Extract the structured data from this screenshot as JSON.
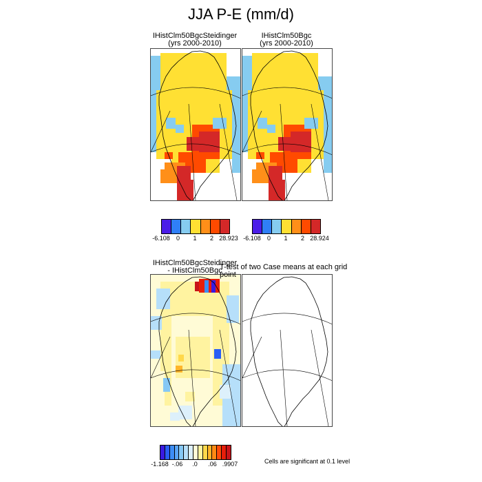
{
  "figure": {
    "title": "JJA P-E (mm/d)",
    "panels": [
      {
        "title_line1": "IHistClm50BgcSteidinger",
        "title_line2": "(yrs 2000-2010)"
      },
      {
        "title_line1": "IHistClm50Bgc",
        "title_line2": "(yrs 2000-2010)"
      },
      {
        "title_line1": "IHistClm50BgcSteidinger",
        "title_line2": "- IHistClm50Bgc"
      },
      {
        "title_line1": "T-test of two Case means at each grid point",
        "title_line2": ""
      }
    ],
    "colorbars": [
      {
        "colors": [
          "#4b1de8",
          "#2f7ff7",
          "#86ccf0",
          "#ffe033",
          "#ff8f19",
          "#ff4a00",
          "#d42828"
        ],
        "labels": [
          "-6.108",
          "0",
          "1",
          "2",
          "28.923"
        ]
      },
      {
        "colors": [
          "#4b1de8",
          "#2f7ff7",
          "#86ccf0",
          "#ffe033",
          "#ff8f19",
          "#ff4a00",
          "#d42828"
        ],
        "labels": [
          "-6.108",
          "0",
          "1",
          "2",
          "28.924"
        ]
      },
      {
        "colors": [
          "#3a1ae0",
          "#2a5ef5",
          "#3d8df5",
          "#5aa6f7",
          "#86c8f5",
          "#b6dffa",
          "#ddf0fb",
          "#fffbd6",
          "#fff3a0",
          "#ffd84a",
          "#ffb52a",
          "#ff8a14",
          "#ff4d0a",
          "#e81e0a",
          "#c8141a"
        ],
        "labels": [
          "-1.168",
          "-.06",
          ".0",
          ".06",
          ".9907"
        ]
      }
    ],
    "significance_note": "Cells are significant at 0.1 level"
  }
}
